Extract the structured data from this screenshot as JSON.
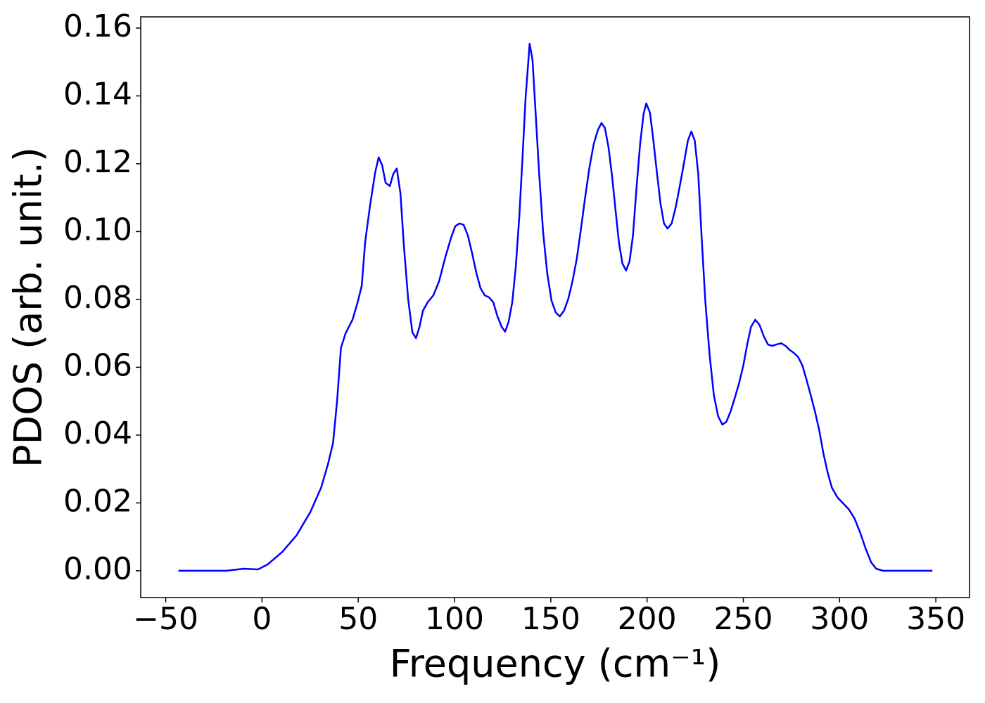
{
  "chart_data": {
    "type": "line",
    "xlabel": "Frequency (cm⁻¹)",
    "ylabel": "PDOS (arb. unit.)",
    "color": "#0000ff",
    "x": [
      -43.4,
      -18.6,
      -9.5,
      -2,
      3,
      10.6,
      17.9,
      25.2,
      30.7,
      34.3,
      36.9,
      39,
      41,
      43.4,
      47,
      49.6,
      51.8,
      53.6,
      56.2,
      58.8,
      60.6,
      62.4,
      64.2,
      66.4,
      68.2,
      70,
      71.9,
      73.7,
      75.9,
      78.1,
      80,
      81.8,
      83.6,
      86.1,
      89,
      92,
      95.3,
      98.2,
      100.4,
      102.6,
      104.7,
      106.9,
      109.1,
      111.3,
      113.5,
      115.7,
      117.9,
      120.1,
      122.3,
      124.5,
      126.3,
      128.1,
      130,
      131.8,
      133.6,
      135.4,
      136.9,
      138.3,
      139,
      140.5,
      142,
      143.8,
      146,
      148.2,
      150.4,
      152.6,
      154.7,
      156.9,
      159.1,
      161.3,
      163.5,
      165.7,
      167.9,
      170.1,
      172.3,
      174.5,
      176.3,
      178.1,
      180,
      181.8,
      183.6,
      185.4,
      187.2,
      189.1,
      190.9,
      192.7,
      194.5,
      196.4,
      198.2,
      199.6,
      201.5,
      203.3,
      205.1,
      207,
      208.8,
      210.6,
      212.8,
      214.9,
      217.2,
      219.3,
      221.2,
      223,
      224.8,
      226.6,
      228.5,
      230.3,
      232.5,
      234.7,
      236.9,
      239.1,
      241.2,
      243.4,
      245.6,
      247.8,
      250,
      252.2,
      254,
      256.2,
      258.4,
      260.6,
      262.8,
      265,
      267.2,
      269.7,
      271.9,
      274.1,
      276.3,
      278.5,
      280.7,
      282.8,
      285,
      287.2,
      289.4,
      291.6,
      293.8,
      296,
      298.9,
      301.8,
      304.7,
      307.7,
      310.6,
      313.5,
      316.4,
      319,
      322.6,
      335.4,
      348.2
    ],
    "values": [
      0,
      0,
      0.0006,
      0.0004,
      0.0019,
      0.0056,
      0.0104,
      0.0174,
      0.0245,
      0.0315,
      0.0377,
      0.05,
      0.0657,
      0.07,
      0.074,
      0.079,
      0.084,
      0.097,
      0.108,
      0.1175,
      0.1219,
      0.1196,
      0.1144,
      0.1134,
      0.117,
      0.1186,
      0.1113,
      0.0958,
      0.0802,
      0.0703,
      0.0686,
      0.0719,
      0.0767,
      0.0792,
      0.0812,
      0.0854,
      0.0926,
      0.0982,
      0.1016,
      0.1024,
      0.102,
      0.0989,
      0.0937,
      0.0879,
      0.0833,
      0.0812,
      0.0806,
      0.0792,
      0.075,
      0.0719,
      0.0705,
      0.0734,
      0.0792,
      0.0895,
      0.104,
      0.1227,
      0.1393,
      0.15,
      0.1554,
      0.1507,
      0.1362,
      0.1185,
      0.0999,
      0.0875,
      0.0796,
      0.0761,
      0.075,
      0.0767,
      0.0802,
      0.0854,
      0.092,
      0.1009,
      0.1103,
      0.119,
      0.1258,
      0.13,
      0.132,
      0.1306,
      0.1248,
      0.1165,
      0.1065,
      0.0968,
      0.0906,
      0.0885,
      0.0912,
      0.0989,
      0.1127,
      0.1258,
      0.1347,
      0.1378,
      0.1351,
      0.1268,
      0.1175,
      0.1082,
      0.1024,
      0.1009,
      0.1024,
      0.1072,
      0.114,
      0.1206,
      0.1268,
      0.1295,
      0.1268,
      0.1169,
      0.0968,
      0.0792,
      0.0636,
      0.0518,
      0.0456,
      0.0431,
      0.0439,
      0.047,
      0.051,
      0.0553,
      0.0605,
      0.0672,
      0.0719,
      0.074,
      0.0725,
      0.0692,
      0.0667,
      0.0663,
      0.0667,
      0.0671,
      0.0663,
      0.0651,
      0.0642,
      0.063,
      0.0605,
      0.0564,
      0.0518,
      0.047,
      0.0415,
      0.0346,
      0.029,
      0.0245,
      0.0216,
      0.0199,
      0.0182,
      0.0155,
      0.0114,
      0.0066,
      0.0025,
      0.0006,
      0,
      0,
      0
    ],
    "xlim": [
      -63,
      367.5
    ],
    "ylim": [
      -0.0079,
      0.1633
    ],
    "xticks": [
      {
        "value": -50,
        "label": "−50"
      },
      0,
      50,
      100,
      150,
      200,
      250,
      300,
      350
    ],
    "yticks": [
      {
        "value": 0,
        "label": "0.00"
      },
      {
        "value": 0.02,
        "label": "0.02"
      },
      {
        "value": 0.04,
        "label": "0.04"
      },
      {
        "value": 0.06,
        "label": "0.06"
      },
      {
        "value": 0.08,
        "label": "0.08"
      },
      {
        "value": 0.1,
        "label": "0.10"
      },
      {
        "value": 0.12,
        "label": "0.12"
      },
      {
        "value": 0.14,
        "label": "0.14"
      },
      {
        "value": 0.16,
        "label": "0.16"
      }
    ]
  }
}
